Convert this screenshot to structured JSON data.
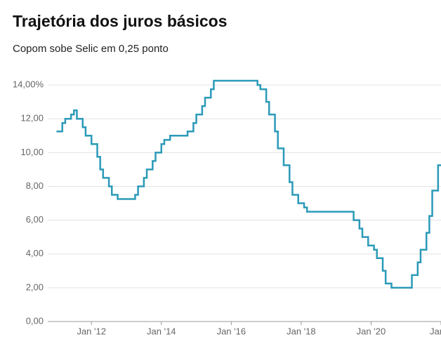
{
  "chart_data": {
    "type": "line",
    "step": true,
    "title": "Trajetória dos juros básicos",
    "subtitle": "Copom sobe Selic em 0,25 ponto",
    "color": "#2b9ab8",
    "x": [
      "2011-01",
      "2011-03",
      "2011-04",
      "2011-06",
      "2011-07",
      "2011-08",
      "2011-10",
      "2011-11",
      "2012-01",
      "2012-03",
      "2012-04",
      "2012-05",
      "2012-07",
      "2012-08",
      "2012-10",
      "2013-04",
      "2013-05",
      "2013-07",
      "2013-08",
      "2013-10",
      "2013-11",
      "2014-01",
      "2014-02",
      "2014-04",
      "2014-10",
      "2014-12",
      "2015-01",
      "2015-03",
      "2015-04",
      "2015-06",
      "2015-07",
      "2016-10",
      "2016-11",
      "2017-01",
      "2017-02",
      "2017-04",
      "2017-05",
      "2017-07",
      "2017-09",
      "2017-10",
      "2017-12",
      "2018-02",
      "2018-03",
      "2019-07",
      "2019-09",
      "2019-10",
      "2019-12",
      "2020-02",
      "2020-03",
      "2020-05",
      "2020-06",
      "2020-08",
      "2021-03",
      "2021-05",
      "2021-06",
      "2021-08",
      "2021-09",
      "2021-10",
      "2021-12"
    ],
    "values": [
      11.25,
      11.75,
      12.0,
      12.25,
      12.5,
      12.0,
      11.5,
      11.0,
      10.5,
      9.75,
      9.0,
      8.5,
      8.0,
      7.5,
      7.25,
      7.5,
      8.0,
      8.5,
      9.0,
      9.5,
      10.0,
      10.5,
      10.75,
      11.0,
      11.25,
      11.75,
      12.25,
      12.75,
      13.25,
      13.75,
      14.25,
      14.0,
      13.75,
      13.0,
      12.25,
      11.25,
      10.25,
      9.25,
      8.25,
      7.5,
      7.0,
      6.75,
      6.5,
      6.0,
      5.5,
      5.0,
      4.5,
      4.25,
      3.75,
      3.0,
      2.25,
      2.0,
      2.75,
      3.5,
      4.25,
      5.25,
      6.25,
      7.75,
      9.25
    ],
    "xlim": [
      "2010-10",
      "2022-01"
    ],
    "xticks": [
      {
        "value": "2012-01",
        "label": "Jan '12"
      },
      {
        "value": "2014-01",
        "label": "Jan '14"
      },
      {
        "value": "2016-01",
        "label": "Jan '16"
      },
      {
        "value": "2018-01",
        "label": "Jan '18"
      },
      {
        "value": "2020-01",
        "label": "Jan '20"
      },
      {
        "value": "2022-01",
        "label": "Jan"
      }
    ],
    "ylim": [
      0,
      15
    ],
    "yticks": [
      {
        "value": 0,
        "label": "0,00"
      },
      {
        "value": 2,
        "label": "2,00"
      },
      {
        "value": 4,
        "label": "4,00"
      },
      {
        "value": 6,
        "label": "6,00"
      },
      {
        "value": 8,
        "label": "8,00"
      },
      {
        "value": 10,
        "label": "10,00"
      },
      {
        "value": 12,
        "label": "12,00"
      },
      {
        "value": 14,
        "label": "14,00%"
      }
    ],
    "grid": true
  }
}
